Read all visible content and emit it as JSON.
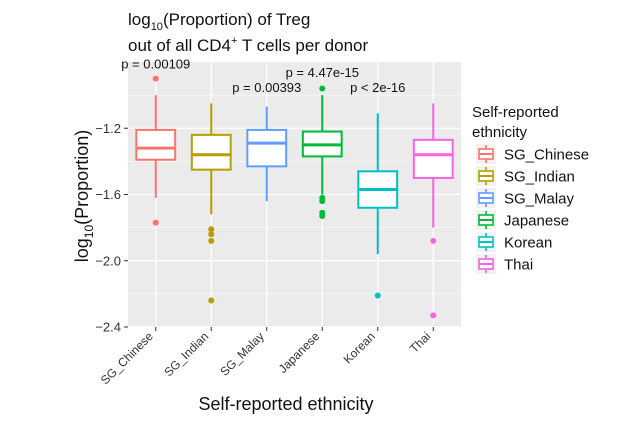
{
  "chart_data": {
    "type": "box",
    "title_line1": "(Proportion) of Treg",
    "title_line1_prefix": "log",
    "title_line1_sub": "10",
    "title_line2": "out of all CD4",
    "title_line2_sup": "+",
    "title_line2_rest": " T cells per donor",
    "xlabel": "Self-reported ethnicity",
    "ylabel_prefix": "log",
    "ylabel_sub": "10",
    "ylabel_rest": "(Proportion)",
    "ylim": [
      -2.4,
      -0.8
    ],
    "yticks": [
      -2.4,
      -2.0,
      -1.6,
      -1.2
    ],
    "ytick_labels": [
      "−2.4",
      "−2.0",
      "−1.6",
      "−1.2"
    ],
    "categories": [
      "SG_Chinese",
      "SG_Indian",
      "SG_Malay",
      "Japanese",
      "Korean",
      "Thai"
    ],
    "colors": [
      "#F8766D",
      "#B79F00",
      "#619CFF",
      "#00BA38",
      "#00BFC4",
      "#F564E3"
    ],
    "legend_title_line1": "Self-reported",
    "legend_title_line2": "ethnicity",
    "series": [
      {
        "name": "SG_Chinese",
        "whisker_low": -1.62,
        "q1": -1.39,
        "median": -1.32,
        "q3": -1.21,
        "whisker_high": -1.0,
        "outliers": [
          -0.9,
          -1.77
        ]
      },
      {
        "name": "SG_Indian",
        "whisker_low": -1.72,
        "q1": -1.45,
        "median": -1.36,
        "q3": -1.24,
        "whisker_high": -1.05,
        "outliers": [
          -1.81,
          -1.84,
          -1.88,
          -2.24
        ]
      },
      {
        "name": "SG_Malay",
        "whisker_low": -1.64,
        "q1": -1.43,
        "median": -1.29,
        "q3": -1.21,
        "whisker_high": -1.07,
        "outliers": []
      },
      {
        "name": "Japanese",
        "whisker_low": -1.6,
        "q1": -1.37,
        "median": -1.3,
        "q3": -1.22,
        "whisker_high": -1.0,
        "outliers": [
          -0.96,
          -1.62,
          -1.64,
          -1.71,
          -1.73
        ]
      },
      {
        "name": "Korean",
        "whisker_low": -1.96,
        "q1": -1.68,
        "median": -1.57,
        "q3": -1.46,
        "whisker_high": -1.11,
        "outliers": [
          -2.21
        ]
      },
      {
        "name": "Thai",
        "whisker_low": -1.8,
        "q1": -1.5,
        "median": -1.36,
        "q3": -1.27,
        "whisker_high": -1.05,
        "outliers": [
          -1.88,
          -2.33
        ]
      }
    ],
    "annotations": [
      {
        "category": "SG_Chinese",
        "text": "p = 0.00109",
        "y": -0.84
      },
      {
        "category": "SG_Malay",
        "text": "p = 0.00393",
        "y": -0.98
      },
      {
        "category": "Japanese",
        "text": "p = 4.47e-15",
        "y": -0.89
      },
      {
        "category": "Korean",
        "text": "p < 2e-16",
        "y": -0.98
      }
    ]
  }
}
